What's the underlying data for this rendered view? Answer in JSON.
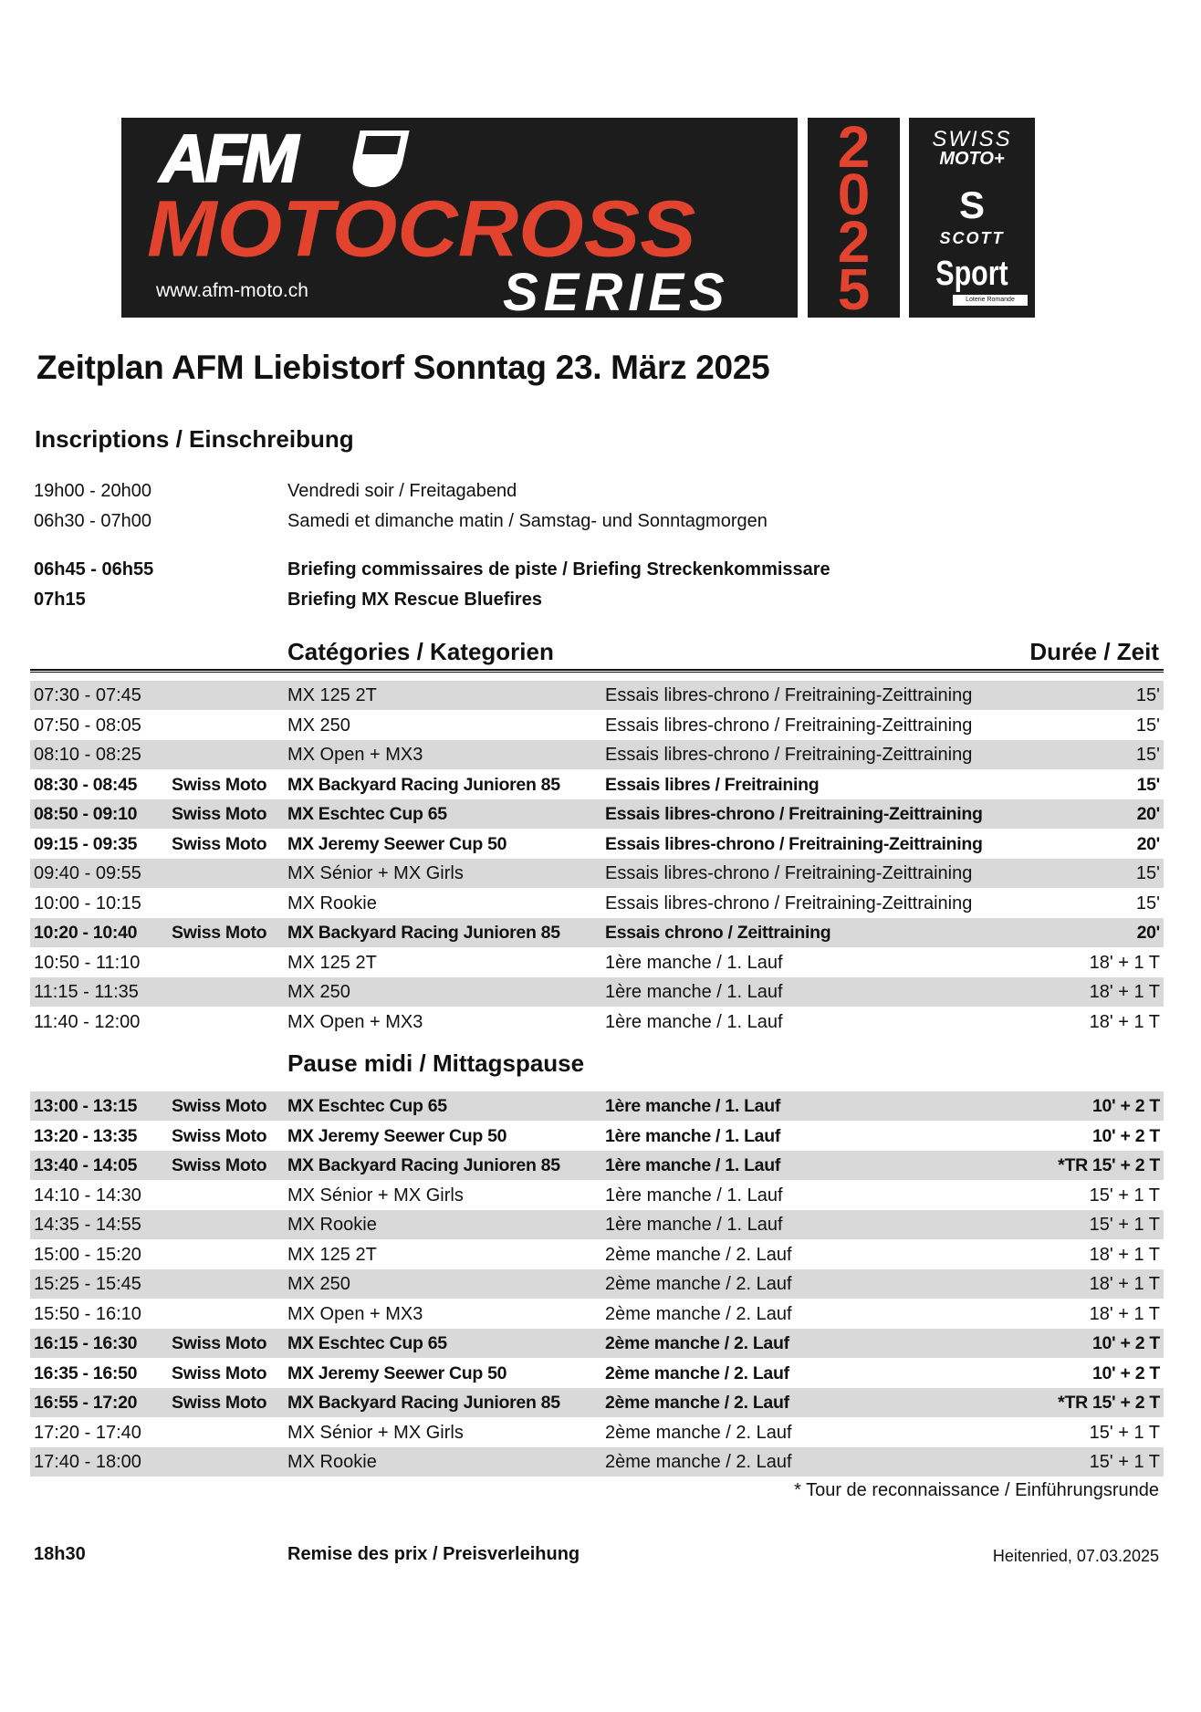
{
  "logo": {
    "afm": "AFM",
    "motocross": "MOTOCROSS",
    "series": "SERIES",
    "url": "www.afm-moto.ch",
    "year": [
      "2",
      "0",
      "2",
      "5"
    ],
    "sponsor_swiss": "SWISS",
    "sponsor_moto": "MOTO+",
    "sponsor_scott": "SCOTT",
    "sponsor_sport": "Sport",
    "sponsor_loterie": "Loterie Romande",
    "colors": {
      "background": "#1c1c1c",
      "accent": "#e2432e"
    }
  },
  "title": "Zeitplan AFM Liebistorf Sonntag 23. März 2025",
  "registration": {
    "heading": "Inscriptions / Einschreibung",
    "items": [
      {
        "time": "19h00 - 20h00",
        "text": "Vendredi soir / Freitagabend",
        "bold": false
      },
      {
        "time": "06h30 - 07h00",
        "text": "Samedi et dimanche matin / Samstag- und Sonntagmorgen",
        "bold": false
      },
      {
        "time": "06h45 - 06h55",
        "text": "Briefing commissaires de piste / Briefing Streckenkommissare",
        "bold": true
      },
      {
        "time": "07h15",
        "text": "Briefing MX Rescue Bluefires",
        "bold": true
      }
    ]
  },
  "table": {
    "header_category": "Catégories / Kategorien",
    "header_duration": "Durée / Zeit",
    "morning": [
      {
        "time": "07:30 - 07:45",
        "org": "",
        "cat": "MX 125 2T",
        "session": "Essais libres-chrono / Freitraining-Zeittraining",
        "dur": "15'",
        "bold": false
      },
      {
        "time": "07:50 - 08:05",
        "org": "",
        "cat": "MX 250",
        "session": "Essais libres-chrono / Freitraining-Zeittraining",
        "dur": "15'",
        "bold": false
      },
      {
        "time": "08:10 - 08:25",
        "org": "",
        "cat": "MX Open + MX3",
        "session": "Essais libres-chrono / Freitraining-Zeittraining",
        "dur": "15'",
        "bold": false
      },
      {
        "time": "08:30 - 08:45",
        "org": "Swiss Moto",
        "cat": "MX Backyard Racing Junioren 85",
        "session": "Essais libres / Freitraining",
        "dur": "15'",
        "bold": true
      },
      {
        "time": "08:50 - 09:10",
        "org": "Swiss Moto",
        "cat": "MX Eschtec Cup 65",
        "session": "Essais libres-chrono / Freitraining-Zeittraining",
        "dur": "20'",
        "bold": true
      },
      {
        "time": "09:15 - 09:35",
        "org": "Swiss Moto",
        "cat": "MX Jeremy Seewer Cup 50",
        "session": "Essais libres-chrono / Freitraining-Zeittraining",
        "dur": "20'",
        "bold": true
      },
      {
        "time": "09:40 - 09:55",
        "org": "",
        "cat": "MX Sénior + MX Girls",
        "session": "Essais libres-chrono / Freitraining-Zeittraining",
        "dur": "15'",
        "bold": false
      },
      {
        "time": "10:00 - 10:15",
        "org": "",
        "cat": "MX Rookie",
        "session": "Essais libres-chrono / Freitraining-Zeittraining",
        "dur": "15'",
        "bold": false
      },
      {
        "time": "10:20 - 10:40",
        "org": "Swiss Moto",
        "cat": "MX Backyard Racing Junioren 85",
        "session": "Essais chrono / Zeittraining",
        "dur": "20'",
        "bold": true
      },
      {
        "time": "10:50 - 11:10",
        "org": "",
        "cat": "MX 125 2T",
        "session": "1ère manche / 1. Lauf",
        "dur": "18' + 1 T",
        "bold": false
      },
      {
        "time": "11:15 - 11:35",
        "org": "",
        "cat": "MX 250",
        "session": "1ère manche / 1. Lauf",
        "dur": "18' + 1 T",
        "bold": false
      },
      {
        "time": "11:40 - 12:00",
        "org": "",
        "cat": "MX Open + MX3",
        "session": "1ère manche / 1. Lauf",
        "dur": "18' + 1 T",
        "bold": false
      }
    ],
    "break_label": "Pause midi / Mittagspause",
    "afternoon": [
      {
        "time": "13:00 - 13:15",
        "org": "Swiss Moto",
        "cat": "MX Eschtec Cup 65",
        "session": "1ère manche / 1. Lauf",
        "dur": "10' + 2 T",
        "bold": true
      },
      {
        "time": "13:20 - 13:35",
        "org": "Swiss Moto",
        "cat": "MX Jeremy Seewer Cup 50",
        "session": "1ère manche / 1. Lauf",
        "dur": "10' + 2 T",
        "bold": true
      },
      {
        "time": "13:40 - 14:05",
        "org": "Swiss Moto",
        "cat": "MX Backyard Racing Junioren 85",
        "session": "1ère manche / 1. Lauf",
        "dur": "*TR 15' + 2 T",
        "bold": true
      },
      {
        "time": "14:10 - 14:30",
        "org": "",
        "cat": "MX Sénior + MX Girls",
        "session": "1ère manche / 1. Lauf",
        "dur": "15' + 1 T",
        "bold": false
      },
      {
        "time": "14:35 - 14:55",
        "org": "",
        "cat": "MX Rookie",
        "session": "1ère manche / 1. Lauf",
        "dur": "15' + 1 T",
        "bold": false
      },
      {
        "time": "15:00 - 15:20",
        "org": "",
        "cat": "MX 125 2T",
        "session": "2ème manche / 2. Lauf",
        "dur": "18' + 1 T",
        "bold": false
      },
      {
        "time": "15:25 - 15:45",
        "org": "",
        "cat": "MX 250",
        "session": "2ème manche / 2. Lauf",
        "dur": "18' + 1 T",
        "bold": false
      },
      {
        "time": "15:50 - 16:10",
        "org": "",
        "cat": "MX Open + MX3",
        "session": "2ème manche / 2. Lauf",
        "dur": "18' + 1 T",
        "bold": false
      },
      {
        "time": "16:15 - 16:30",
        "org": "Swiss Moto",
        "cat": "MX Eschtec Cup 65",
        "session": "2ème manche / 2. Lauf",
        "dur": "10' + 2 T",
        "bold": true
      },
      {
        "time": "16:35 - 16:50",
        "org": "Swiss Moto",
        "cat": "MX Jeremy Seewer Cup 50",
        "session": "2ème manche / 2. Lauf",
        "dur": "10' + 2 T",
        "bold": true
      },
      {
        "time": "16:55 - 17:20",
        "org": "Swiss Moto",
        "cat": "MX Backyard Racing Junioren 85",
        "session": "2ème manche / 2. Lauf",
        "dur": "*TR 15' + 2 T",
        "bold": true
      },
      {
        "time": "17:20 - 17:40",
        "org": "",
        "cat": "MX Sénior + MX Girls",
        "session": "2ème manche / 2. Lauf",
        "dur": "15' + 1 T",
        "bold": false
      },
      {
        "time": "17:40 - 18:00",
        "org": "",
        "cat": "MX Rookie",
        "session": "2ème manche / 2. Lauf",
        "dur": "15' + 1 T",
        "bold": false
      }
    ],
    "row_shade_color": "#d9d9d9",
    "footnote": "* Tour de reconnaissance / Einführungsrunde"
  },
  "ceremony": {
    "time": "18h30",
    "text": "Remise des prix / Preisverleihung"
  },
  "place_date": "Heitenried, 07.03.2025"
}
